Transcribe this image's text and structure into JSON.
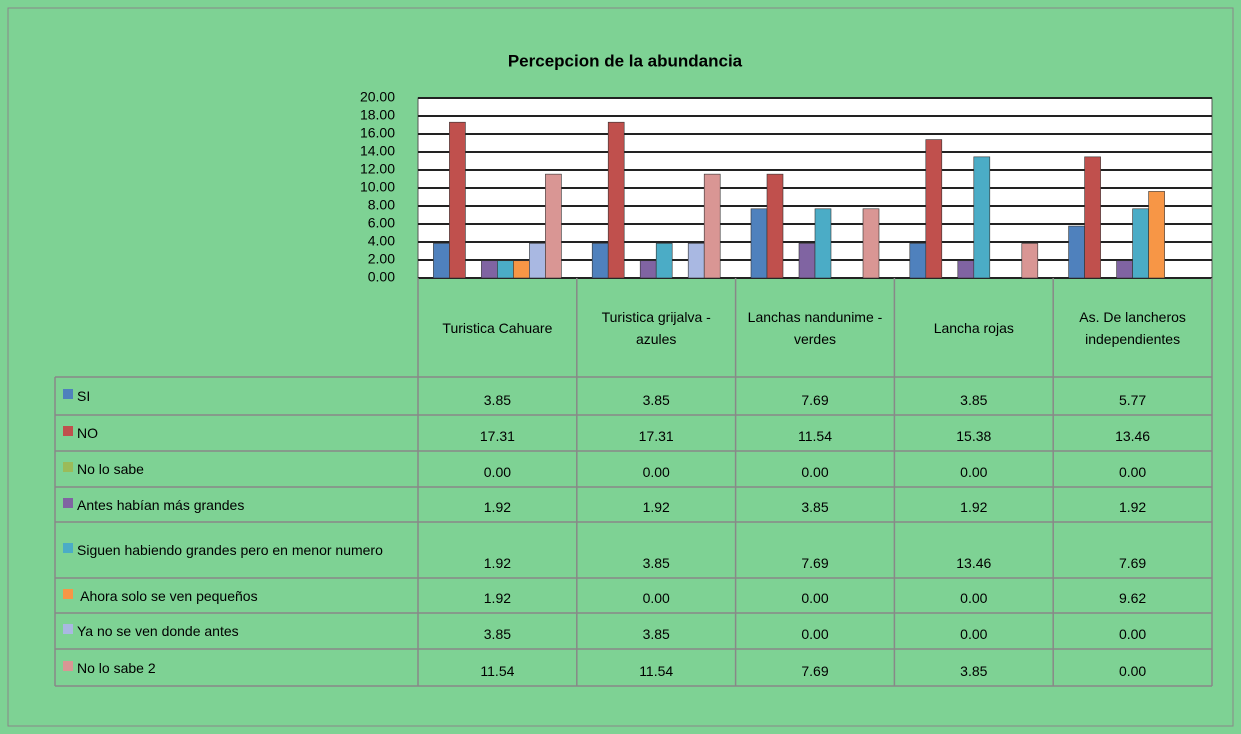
{
  "chart_data": {
    "type": "bar",
    "title": "Percepcion de la abundancia",
    "categories": [
      "Turistica Cahuare",
      "Turistica grijalva - azules",
      "Lanchas nandunime - verdes",
      "Lancha rojas",
      "As. De lancheros independientes"
    ],
    "ylim": [
      0,
      20
    ],
    "yticks": [
      {
        "value": 0,
        "label": "0.00"
      },
      {
        "value": 2,
        "label": "2.00"
      },
      {
        "value": 4,
        "label": "4.00"
      },
      {
        "value": 6,
        "label": "6.00"
      },
      {
        "value": 8,
        "label": "8.00"
      },
      {
        "value": 10,
        "label": "10.00"
      },
      {
        "value": 12,
        "label": "12.00"
      },
      {
        "value": 14,
        "label": "14.00"
      },
      {
        "value": 16,
        "label": "16.00"
      },
      {
        "value": 18,
        "label": "18.00"
      },
      {
        "value": 20,
        "label": "20.00"
      }
    ],
    "grid": true,
    "series": [
      {
        "name": "SI",
        "color": "#4f81bd",
        "values": [
          3.85,
          3.85,
          7.69,
          3.85,
          5.77
        ],
        "value_labels": [
          "3.85",
          "3.85",
          "7.69",
          "3.85",
          "5.77"
        ]
      },
      {
        "name": "NO",
        "color": "#c0504d",
        "values": [
          17.31,
          17.31,
          11.54,
          15.38,
          13.46
        ],
        "value_labels": [
          "17.31",
          "17.31",
          "11.54",
          "15.38",
          "13.46"
        ]
      },
      {
        "name": "No lo sabe",
        "color": "#9bbb59",
        "values": [
          0,
          0,
          0,
          0,
          0
        ],
        "value_labels": [
          "0.00",
          "0.00",
          "0.00",
          "0.00",
          "0.00"
        ]
      },
      {
        "name": "Antes habían más grandes",
        "color": "#8064a2",
        "values": [
          1.92,
          1.92,
          3.85,
          1.92,
          1.92
        ],
        "value_labels": [
          "1.92",
          "1.92",
          "3.85",
          "1.92",
          "1.92"
        ]
      },
      {
        "name": "Siguen habiendo grandes pero en menor numero",
        "color": "#4bacc6",
        "values": [
          1.92,
          3.85,
          7.69,
          13.46,
          7.69
        ],
        "value_labels": [
          "1.92",
          "3.85",
          "7.69",
          "13.46",
          "7.69"
        ]
      },
      {
        "name": " Ahora solo se ven pequeños",
        "color": "#f79646",
        "values": [
          1.92,
          0,
          0,
          0,
          9.62
        ],
        "value_labels": [
          "1.92",
          "0.00",
          "0.00",
          "0.00",
          "9.62"
        ]
      },
      {
        "name": "Ya no se ven donde antes",
        "color": "#a9b8e2",
        "values": [
          3.85,
          3.85,
          0,
          0,
          0
        ],
        "value_labels": [
          "3.85",
          "3.85",
          "0.00",
          "0.00",
          "0.00"
        ]
      },
      {
        "name": "No lo sabe 2",
        "color": "#d99694",
        "values": [
          11.54,
          11.54,
          7.69,
          3.85,
          0
        ],
        "value_labels": [
          "11.54",
          "11.54",
          "7.69",
          "3.85",
          "0.00"
        ]
      }
    ]
  }
}
